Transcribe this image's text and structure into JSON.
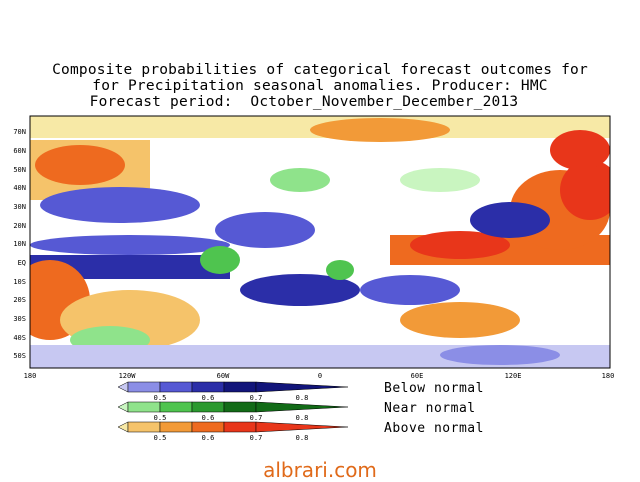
{
  "title": {
    "line1": "Composite probabilities of categorical forecast outcomes for",
    "line2": "for Precipitation seasonal anomalies. Producer: HMC",
    "line3": "Forecast period:  October_November_December_2013"
  },
  "map": {
    "lat_labels": [
      "70N",
      "60N",
      "50N",
      "40N",
      "30N",
      "20N",
      "10N",
      "EQ",
      "10S",
      "20S",
      "30S",
      "40S",
      "50S"
    ],
    "lon_labels": [
      "180",
      "120W",
      "60W",
      "0",
      "60E",
      "120E",
      "180"
    ]
  },
  "legend": {
    "below": {
      "label": "Below normal",
      "ticks": [
        "0.5",
        "0.6",
        "0.7",
        "0.8"
      ],
      "colors": [
        "#c7c8f2",
        "#8b8ee6",
        "#5659d4",
        "#2b2ea8",
        "#12157a"
      ]
    },
    "near": {
      "label": "Near normal",
      "ticks": [
        "0.5",
        "0.6",
        "0.7",
        "0.8"
      ],
      "colors": [
        "#c9f5c0",
        "#8fe38b",
        "#4fc44f",
        "#2b992f",
        "#126b17"
      ]
    },
    "above": {
      "label": "Above normal",
      "ticks": [
        "0.5",
        "0.6",
        "0.7",
        "0.8"
      ],
      "colors": [
        "#f7e9a6",
        "#f5c36a",
        "#f29a38",
        "#ee6a1f",
        "#e8361a"
      ]
    }
  },
  "watermark": "albrari.com"
}
